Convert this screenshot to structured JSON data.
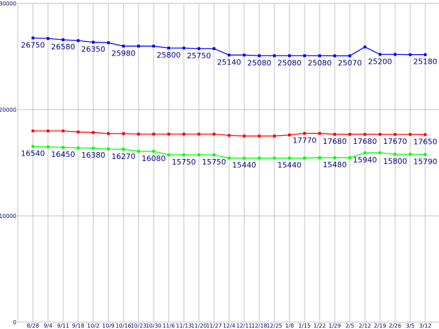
{
  "chart_data": {
    "type": "line",
    "title": "",
    "xlabel": "",
    "ylabel": "",
    "ylim": [
      0,
      30000
    ],
    "yticks": [
      "0",
      "10000",
      "20000",
      "30000"
    ],
    "grid": true,
    "categories": [
      "8/28",
      "9/4",
      "9/11",
      "9/18",
      "10/2",
      "10/9",
      "10/16",
      "10/23",
      "10/30",
      "11/6",
      "11/13",
      "11/20",
      "11/27",
      "12/4",
      "12/11",
      "12/18",
      "12/25",
      "1/8",
      "1/15",
      "1/22",
      "1/29",
      "2/5",
      "2/12",
      "2/19",
      "2/26",
      "3/5",
      "3/12"
    ],
    "series": [
      {
        "name": "blue",
        "color": "#0000ff",
        "values": [
          26750,
          26700,
          26580,
          26500,
          26350,
          26300,
          25980,
          25980,
          25980,
          25800,
          25800,
          25750,
          25750,
          25140,
          25140,
          25080,
          25080,
          25080,
          25080,
          25080,
          25070,
          25070,
          25900,
          25200,
          25200,
          25180,
          25180
        ],
        "labels": [
          [
            0,
            "26750"
          ],
          [
            2,
            "26580"
          ],
          [
            4,
            "26350"
          ],
          [
            6,
            "25980"
          ],
          [
            9,
            "25800"
          ],
          [
            11,
            "25750"
          ],
          [
            13,
            "25140"
          ],
          [
            15,
            "25080"
          ],
          [
            17,
            "25080"
          ],
          [
            19,
            "25080"
          ],
          [
            21,
            "25070"
          ],
          [
            23,
            "25200"
          ],
          [
            26,
            "25180"
          ]
        ]
      },
      {
        "name": "red",
        "color": "#ff0000",
        "values": [
          18000,
          18000,
          18000,
          17900,
          17850,
          17750,
          17750,
          17700,
          17700,
          17700,
          17700,
          17700,
          17700,
          17580,
          17520,
          17520,
          17520,
          17620,
          17770,
          17770,
          17680,
          17680,
          17680,
          17680,
          17670,
          17670,
          17650
        ],
        "labels": [
          [
            18,
            "17770"
          ],
          [
            20,
            "17680"
          ],
          [
            22,
            "17680"
          ],
          [
            24,
            "17670"
          ],
          [
            26,
            "17650"
          ]
        ]
      },
      {
        "name": "green",
        "color": "#00ff00",
        "values": [
          16540,
          16500,
          16450,
          16400,
          16380,
          16300,
          16270,
          16080,
          16080,
          15750,
          15750,
          15750,
          15750,
          15440,
          15440,
          15440,
          15440,
          15440,
          15440,
          15480,
          15480,
          15480,
          15940,
          15940,
          15800,
          15800,
          15790
        ],
        "labels": [
          [
            0,
            "16540"
          ],
          [
            2,
            "16450"
          ],
          [
            4,
            "16380"
          ],
          [
            6,
            "16270"
          ],
          [
            8,
            "16080"
          ],
          [
            10,
            "15750"
          ],
          [
            12,
            "15750"
          ],
          [
            14,
            "15440"
          ],
          [
            17,
            "15440"
          ],
          [
            20,
            "15480"
          ],
          [
            22,
            "15940"
          ],
          [
            24,
            "15800"
          ],
          [
            26,
            "15790"
          ]
        ]
      }
    ]
  }
}
